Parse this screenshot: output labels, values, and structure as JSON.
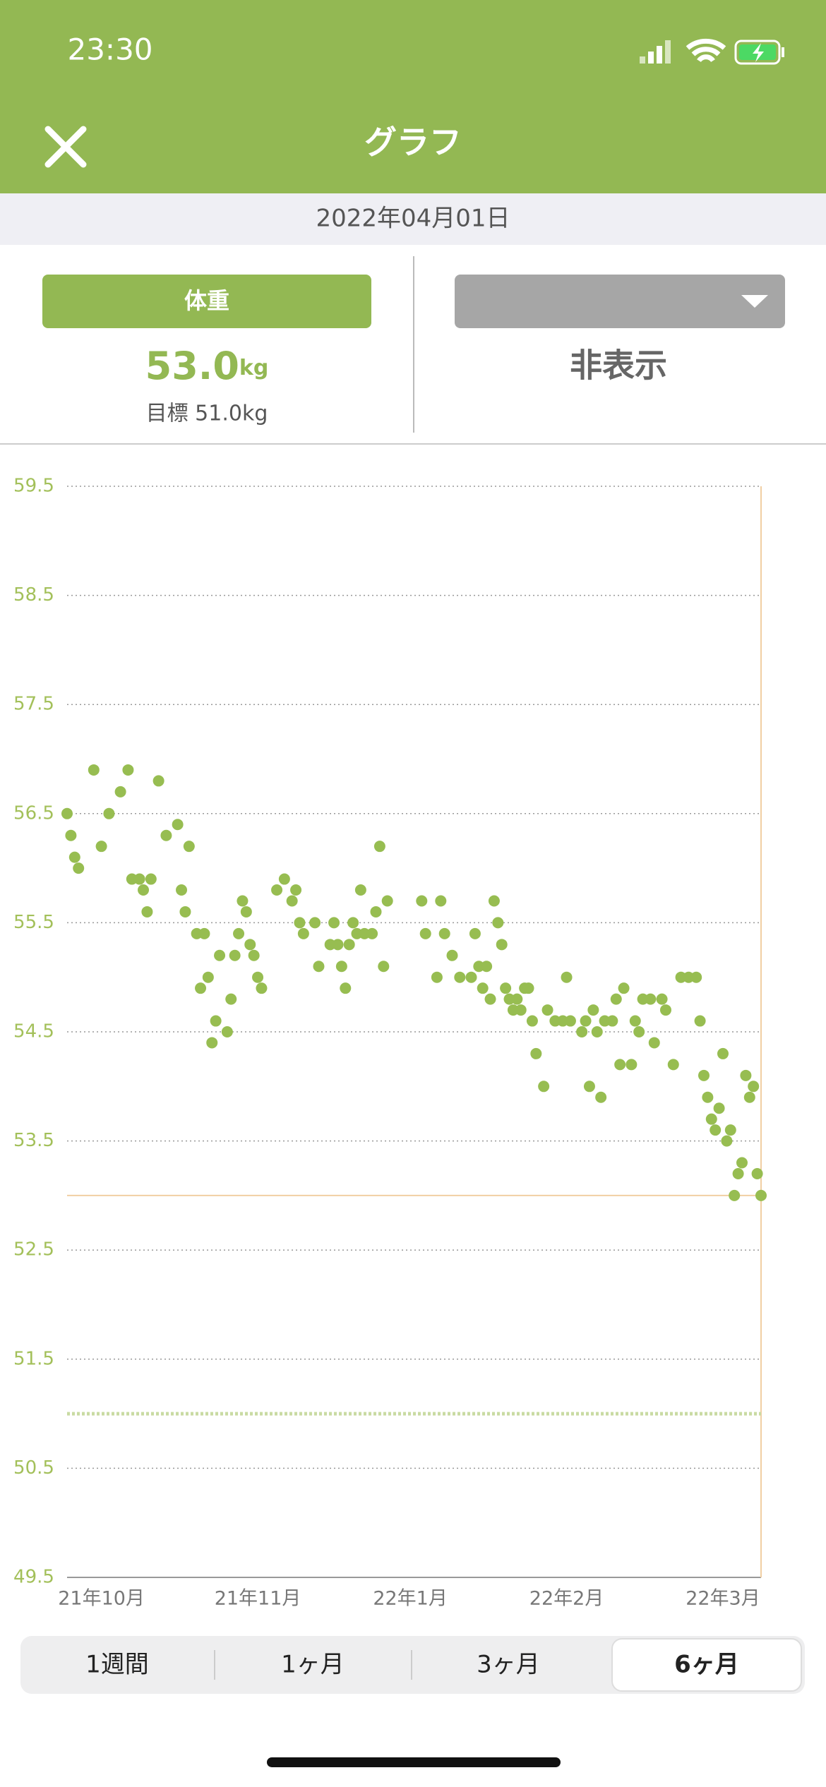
{
  "status_bar": {
    "time": "23:30"
  },
  "header": {
    "title": "グラフ"
  },
  "date_bar": {
    "date": "2022年04月01日"
  },
  "left_panel": {
    "button": "体重",
    "value": "53.0",
    "unit": "kg",
    "target": "目標 51.0kg"
  },
  "right_panel": {
    "value": "非表示"
  },
  "chart_data": {
    "type": "line",
    "color": "#97bd51",
    "xlim": [
      0,
      182
    ],
    "xticks": [
      {
        "value": 9,
        "label": "21年10月"
      },
      {
        "value": 50,
        "label": "21年11月"
      },
      {
        "value": 90,
        "label": "22年1月"
      },
      {
        "value": 131,
        "label": "22年2月"
      },
      {
        "value": 172,
        "label": "22年3月"
      }
    ],
    "ylim": [
      49.5,
      59.5
    ],
    "yticks": [
      59.5,
      58.5,
      57.5,
      56.5,
      55.5,
      54.5,
      53.5,
      52.5,
      51.5,
      50.5,
      49.5
    ],
    "grid": true,
    "target_line": 51,
    "current_line": 53,
    "x": [
      0,
      1,
      2,
      3,
      7,
      9,
      11,
      14,
      16,
      17,
      19,
      20,
      21,
      22,
      24,
      26,
      29,
      30,
      31,
      32,
      34,
      35,
      36,
      37,
      38,
      39,
      40,
      42,
      43,
      44,
      45,
      46,
      47,
      48,
      49,
      50,
      51,
      55,
      57,
      59,
      60,
      61,
      62,
      65,
      66,
      69,
      70,
      71,
      72,
      73,
      74,
      75,
      76,
      77,
      78,
      80,
      81,
      82,
      83,
      84,
      93,
      94,
      97,
      98,
      99,
      101,
      103,
      106,
      107,
      108,
      109,
      110,
      111,
      112,
      113,
      114,
      115,
      116,
      117,
      118,
      119,
      120,
      121,
      122,
      123,
      125,
      126,
      128,
      130,
      131,
      132,
      135,
      136,
      137,
      138,
      139,
      140,
      141,
      143,
      144,
      145,
      146,
      148,
      149,
      150,
      151,
      153,
      154,
      156,
      157,
      159,
      161,
      163,
      165,
      166,
      167,
      168,
      169,
      170,
      171,
      172,
      173,
      174,
      175,
      176,
      177,
      178,
      179,
      180,
      181,
      182
    ],
    "series": [
      {
        "values": [
          56.5,
          56.3,
          56.1,
          56.0,
          56.9,
          56.2,
          56.5,
          56.7,
          56.9,
          55.9,
          55.9,
          55.8,
          55.6,
          55.9,
          56.8,
          56.3,
          56.4,
          55.8,
          55.6,
          56.2,
          55.4,
          54.9,
          55.4,
          55.0,
          54.4,
          54.6,
          55.2,
          54.5,
          54.8,
          55.2,
          55.4,
          55.7,
          55.6,
          55.3,
          55.2,
          55.0,
          54.9,
          55.8,
          55.9,
          55.7,
          55.8,
          55.5,
          55.4,
          55.5,
          55.1,
          55.3,
          55.5,
          55.3,
          55.1,
          54.9,
          55.3,
          55.5,
          55.4,
          55.8,
          55.4,
          55.4,
          55.6,
          56.2,
          55.1,
          55.7,
          55.7,
          55.4,
          55.0,
          55.7,
          55.4,
          55.2,
          55.0,
          55.0,
          55.4,
          55.1,
          54.9,
          55.1,
          54.8,
          55.7,
          55.5,
          55.3,
          54.9,
          54.8,
          54.7,
          54.8,
          54.7,
          54.9,
          54.9,
          54.6,
          54.3,
          54.0,
          54.7,
          54.6,
          54.6,
          55.0,
          54.6,
          54.5,
          54.6,
          54.0,
          54.7,
          54.5,
          53.9,
          54.6,
          54.6,
          54.8,
          54.2,
          54.9,
          54.2,
          54.6,
          54.5,
          54.8,
          54.8,
          54.4,
          54.8,
          54.7,
          54.2,
          55.0,
          55.0,
          55.0,
          54.6,
          54.1,
          53.9,
          53.7,
          53.6,
          53.8,
          54.3,
          53.5,
          53.6,
          53.0,
          53.2,
          53.3,
          54.1,
          53.9,
          54.0,
          53.2,
          53.0
        ]
      }
    ]
  },
  "segments": [
    "1週間",
    "1ヶ月",
    "3ヶ月",
    "6ヶ月"
  ]
}
